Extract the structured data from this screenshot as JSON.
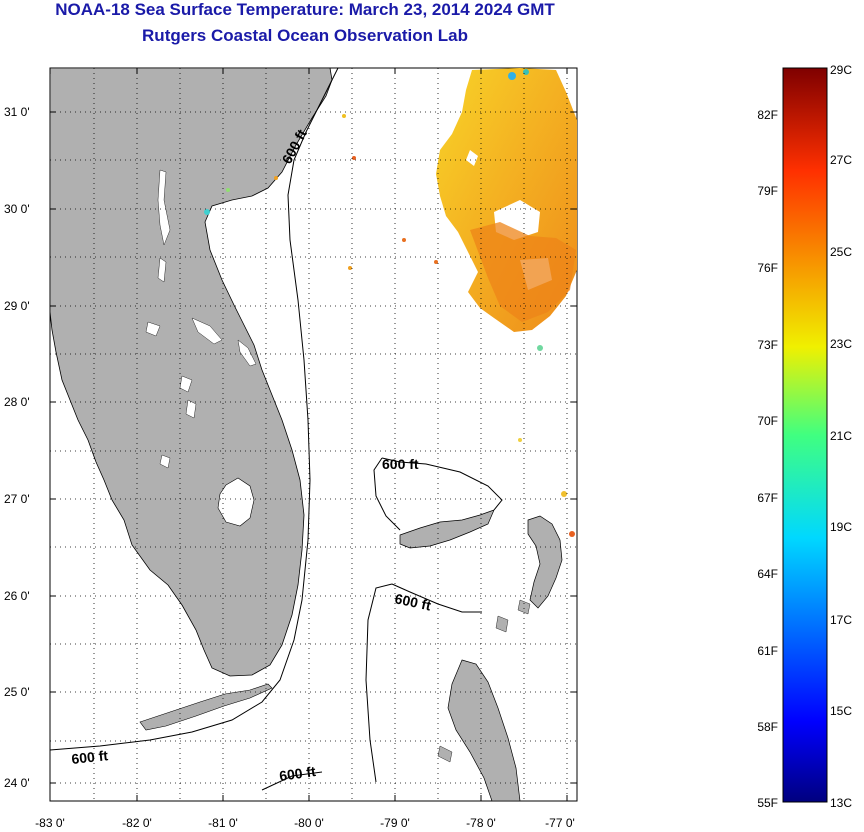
{
  "title": "NOAA-18 Sea Surface Temperature:  March 23, 2014 2024 GMT",
  "subtitle": "Rutgers Coastal Ocean Observation Lab",
  "lat_labels": [
    "31 0'",
    "30 0'",
    "29 0'",
    "28 0'",
    "27 0'",
    "26 0'",
    "25 0'",
    "24 0'"
  ],
  "lon_labels": [
    "-83 0'",
    "-82 0'",
    "-81 0'",
    "-80 0'",
    "-79 0'",
    "-78 0'",
    "-77 0'"
  ],
  "isobath_labels": [
    "600 ft",
    "600 ft",
    "600 ft",
    "600 ft",
    "600 ft"
  ],
  "colorbar": {
    "fahrenheit_labels": [
      "82F",
      "79F",
      "76F",
      "73F",
      "70F",
      "67F",
      "64F",
      "61F",
      "58F",
      "55F"
    ],
    "celsius_labels": [
      "29C",
      "27C",
      "25C",
      "23C",
      "21C",
      "19C",
      "17C",
      "15C",
      "13C"
    ],
    "colormap": "jet",
    "range_c": [
      13,
      29
    ]
  },
  "colors": {
    "land": "#b0b0b0",
    "ocean": "#ffffff",
    "title": "#1a1aa8",
    "sst_warm_band": "#f5b820",
    "sst_hot_band": "#f08c18"
  }
}
